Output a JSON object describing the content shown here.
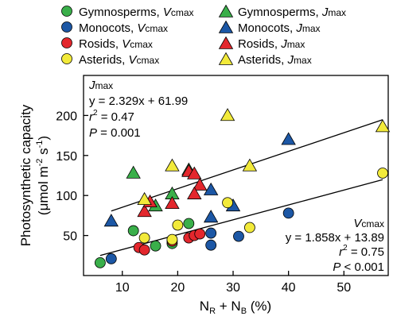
{
  "chart_data": {
    "type": "scatter",
    "xlabel": {
      "main": "N",
      "sub1": "R",
      "plus": " + N",
      "sub2": "B",
      "tail": " (%)"
    },
    "ylabel": {
      "line1": "Photosynthetic capacity",
      "line2_pre": "(μmol m",
      "exp1": "-2",
      "mid": " s",
      "exp2": "-1",
      "post": ")"
    },
    "xlim": [
      3,
      58
    ],
    "ylim": [
      0,
      250
    ],
    "xticks": [
      10,
      20,
      30,
      40,
      50
    ],
    "yticks": [
      50,
      100,
      150,
      200
    ],
    "grid": false,
    "legend": {
      "placement": "top",
      "entries": [
        {
          "group": "Gymnosperms, ",
          "param": "V",
          "param_sub": "cmax",
          "shape": "circle",
          "color": "#3aaf4a"
        },
        {
          "group": "Gymnosperms, ",
          "param": "J",
          "param_sub": "max",
          "shape": "triangle",
          "color": "#3aaf4a"
        },
        {
          "group": "Monocots, ",
          "param": "V",
          "param_sub": "cmax",
          "shape": "circle",
          "color": "#1c57a5"
        },
        {
          "group": "Monocots, ",
          "param": "J",
          "param_sub": "max",
          "shape": "triangle",
          "color": "#1c57a5"
        },
        {
          "group": "Rosids, ",
          "param": "V",
          "param_sub": "cmax",
          "shape": "circle",
          "color": "#e3272d"
        },
        {
          "group": "Rosids, ",
          "param": "J",
          "param_sub": "max",
          "shape": "triangle",
          "color": "#e3272d"
        },
        {
          "group": "Asterids, ",
          "param": "V",
          "param_sub": "cmax",
          "shape": "circle",
          "color": "#f2ea3a"
        },
        {
          "group": "Asterids, ",
          "param": "J",
          "param_sub": "max",
          "shape": "triangle",
          "color": "#f2ea3a"
        }
      ]
    },
    "series": [
      {
        "name": "Gymnosperms, Vcmax",
        "shape": "circle",
        "color": "#3aaf4a",
        "points": [
          [
            6,
            16
          ],
          [
            12,
            56
          ],
          [
            16,
            37
          ],
          [
            22,
            65
          ],
          [
            19,
            40
          ]
        ]
      },
      {
        "name": "Gymnosperms, Jmax",
        "shape": "triangle",
        "color": "#3aaf4a",
        "points": [
          [
            12,
            128
          ],
          [
            16,
            87
          ],
          [
            19,
            102
          ],
          [
            22,
            132
          ]
        ]
      },
      {
        "name": "Monocots, Vcmax",
        "shape": "circle",
        "color": "#1c57a5",
        "points": [
          [
            8,
            21
          ],
          [
            26,
            38
          ],
          [
            26,
            53
          ],
          [
            31,
            49
          ],
          [
            40,
            78
          ]
        ]
      },
      {
        "name": "Monocots, Jmax",
        "shape": "triangle",
        "color": "#1c57a5",
        "points": [
          [
            8,
            68
          ],
          [
            26,
            107
          ],
          [
            26,
            73
          ],
          [
            30,
            87
          ],
          [
            40,
            170
          ]
        ]
      },
      {
        "name": "Rosids, Vcmax",
        "shape": "circle",
        "color": "#e3272d",
        "points": [
          [
            13,
            35
          ],
          [
            14,
            32
          ],
          [
            19,
            43
          ],
          [
            22,
            47
          ],
          [
            23,
            50
          ],
          [
            24,
            52
          ]
        ]
      },
      {
        "name": "Rosids, Jmax",
        "shape": "triangle",
        "color": "#e3272d",
        "points": [
          [
            14,
            80
          ],
          [
            15,
            92
          ],
          [
            19,
            90
          ],
          [
            22,
            130
          ],
          [
            23,
            127
          ],
          [
            24,
            113
          ],
          [
            23,
            102
          ]
        ]
      },
      {
        "name": "Asterids, Vcmax",
        "shape": "circle",
        "color": "#f2ea3a",
        "points": [
          [
            14,
            47
          ],
          [
            19,
            45
          ],
          [
            20,
            63
          ],
          [
            29,
            91
          ],
          [
            33,
            60
          ],
          [
            57,
            128
          ]
        ]
      },
      {
        "name": "Asterids, Jmax",
        "shape": "triangle",
        "color": "#f2ea3a",
        "points": [
          [
            14,
            95
          ],
          [
            19,
            137
          ],
          [
            29,
            200
          ],
          [
            33,
            137
          ],
          [
            57,
            186
          ]
        ]
      }
    ],
    "fits": [
      {
        "label": "Jmax",
        "slope": 2.329,
        "intercept": 61.99,
        "x_range": [
          8,
          57
        ]
      },
      {
        "label": "Vcmax",
        "slope": 1.858,
        "intercept": 13.89,
        "x_range": [
          6,
          57
        ]
      }
    ],
    "annotations": {
      "jmax": {
        "sym": "J",
        "sub": "max",
        "equation": "y = 2.329x + 61.99",
        "r_sym": "r",
        "r_exp": "2",
        "r_val": " = 0.47",
        "p_sym": "P",
        "p_val": " = 0.001"
      },
      "vcmax": {
        "sym": "V",
        "sub": "cmax",
        "equation": "y = 1.858x + 13.89",
        "r_sym": "r",
        "r_exp": "2",
        "r_val": " = 0.75",
        "p_sym": "P",
        "p_val": " < 0.001"
      }
    }
  }
}
